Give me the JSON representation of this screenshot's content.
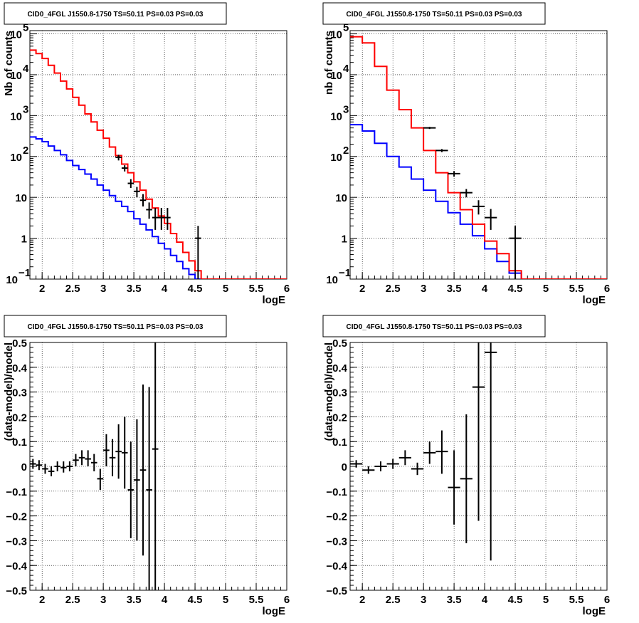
{
  "chart_data": [
    {
      "type": "step-histogram",
      "title": "CID0_4FGL J1550.8-1750 TS=50.11 PS=0.03 PS=0.03",
      "xlabel": "logE",
      "ylabel": "Nb of counts",
      "log_y": true,
      "xlim": [
        1.8,
        6.0
      ],
      "ylim": [
        0.1,
        120000
      ],
      "x_ticks": [
        "2",
        "2.5",
        "3",
        "3.5",
        "4",
        "4.5",
        "5",
        "5.5",
        "6"
      ],
      "y_ticks": [
        {
          "v": 0.1,
          "base": "10",
          "exp": "−1"
        },
        {
          "v": 1,
          "label": "1"
        },
        {
          "v": 10,
          "label": "10"
        },
        {
          "v": 100,
          "base": "10",
          "exp": "2"
        },
        {
          "v": 1000,
          "base": "10",
          "exp": "3"
        },
        {
          "v": 10000,
          "base": "10",
          "exp": "4"
        },
        {
          "v": 100000,
          "base": "10",
          "exp": "5"
        }
      ],
      "grid": true,
      "edges": [
        1.8,
        1.9,
        2.0,
        2.1,
        2.2,
        2.3,
        2.4,
        2.5,
        2.6,
        2.7,
        2.8,
        2.9,
        3.0,
        3.1,
        3.2,
        3.3,
        3.4,
        3.5,
        3.6,
        3.7,
        3.8,
        3.9,
        4.0,
        4.1,
        4.2,
        4.3,
        4.4,
        4.5,
        4.6,
        4.7,
        4.8,
        4.9,
        5.0,
        5.1,
        5.2,
        5.3,
        5.4,
        5.5,
        5.6,
        5.7,
        5.8,
        5.9,
        6.0
      ],
      "series": [
        {
          "color": "#0000ff",
          "values": [
            300,
            270,
            230,
            180,
            140,
            110,
            80,
            60,
            48,
            37,
            28,
            20,
            15,
            11,
            8,
            6,
            4.5,
            3,
            2.2,
            1.6,
            1.1,
            0.75,
            0.55,
            0.38,
            0.27,
            0.18,
            0.13,
            0.1,
            0.1,
            0.1,
            0.1,
            0.1,
            0.1,
            0.1,
            0.1,
            0.1,
            0.1,
            0.1,
            0.1,
            0.1,
            0.1,
            0.1
          ]
        },
        {
          "color": "#ff0000",
          "values": [
            40000,
            33000,
            25000,
            17000,
            11000,
            7000,
            4500,
            2800,
            1800,
            1100,
            700,
            440,
            280,
            170,
            105,
            65,
            40,
            24,
            15,
            9,
            5.5,
            3.5,
            2.3,
            1.3,
            0.8,
            0.45,
            0.28,
            0.16,
            0.1,
            0.1,
            0.1,
            0.1,
            0.1,
            0.1,
            0.1,
            0.1,
            0.1,
            0.1,
            0.1,
            0.1,
            0.1,
            0.1
          ]
        }
      ],
      "points": [
        {
          "x": 3.25,
          "y": 95,
          "lo": 80,
          "hi": 110,
          "xerr": 0.05
        },
        {
          "x": 3.35,
          "y": 52,
          "lo": 43,
          "hi": 61,
          "xerr": 0.05
        },
        {
          "x": 3.45,
          "y": 22,
          "lo": 17,
          "hi": 28,
          "xerr": 0.05
        },
        {
          "x": 3.55,
          "y": 14,
          "lo": 10,
          "hi": 18,
          "xerr": 0.05
        },
        {
          "x": 3.65,
          "y": 8.5,
          "lo": 6,
          "hi": 12,
          "xerr": 0.05
        },
        {
          "x": 3.75,
          "y": 5,
          "lo": 3,
          "hi": 7.5,
          "xerr": 0.05
        },
        {
          "x": 3.85,
          "y": 3.2,
          "lo": 1.6,
          "hi": 5.5,
          "xerr": 0.05
        },
        {
          "x": 3.95,
          "y": 3.2,
          "lo": 1.6,
          "hi": 5.5,
          "xerr": 0.05
        },
        {
          "x": 4.05,
          "y": 3.2,
          "lo": 1.6,
          "hi": 5.5,
          "xerr": 0.05
        },
        {
          "x": 4.55,
          "y": 1.0,
          "lo": 0.1,
          "hi": 2.0,
          "xerr": 0.05
        }
      ]
    },
    {
      "type": "step-histogram",
      "title": "CID0_4FGL J1550.8-1750 TS=50.11 PS=0.03 PS=0.03",
      "xlabel": "logE",
      "ylabel": "nb of counts",
      "log_y": true,
      "xlim": [
        1.8,
        6.0
      ],
      "ylim": [
        0.1,
        120000
      ],
      "x_ticks": [
        "2",
        "2.5",
        "3",
        "3.5",
        "4",
        "4.5",
        "5",
        "5.5",
        "6"
      ],
      "y_ticks": [
        {
          "v": 0.1,
          "base": "10",
          "exp": "−1"
        },
        {
          "v": 1,
          "label": "1"
        },
        {
          "v": 10,
          "label": "10"
        },
        {
          "v": 100,
          "base": "10",
          "exp": "2"
        },
        {
          "v": 1000,
          "base": "10",
          "exp": "3"
        },
        {
          "v": 10000,
          "base": "10",
          "exp": "4"
        },
        {
          "v": 100000,
          "base": "10",
          "exp": "5"
        }
      ],
      "grid": true,
      "edges": [
        1.8,
        2.0,
        2.2,
        2.4,
        2.6,
        2.8,
        3.0,
        3.2,
        3.4,
        3.6,
        3.8,
        4.0,
        4.2,
        4.4,
        4.6,
        4.8,
        5.0,
        5.2,
        5.4,
        5.6,
        5.8,
        6.0
      ],
      "series": [
        {
          "color": "#0000ff",
          "values": [
            600,
            420,
            210,
            100,
            55,
            28,
            15,
            8,
            4.2,
            2.2,
            1.15,
            0.55,
            0.27,
            0.14,
            0.1,
            0.1,
            0.1,
            0.1,
            0.1,
            0.1,
            0.1
          ]
        },
        {
          "color": "#ff0000",
          "values": [
            85000,
            60000,
            16000,
            4200,
            1400,
            500,
            140,
            40,
            13,
            5,
            2.2,
            0.85,
            0.42,
            0.16,
            0.1,
            0.1,
            0.1,
            0.1,
            0.1,
            0.1,
            0.1
          ]
        }
      ],
      "points": [
        {
          "x": 3.1,
          "y": 500,
          "lo": 470,
          "hi": 530,
          "xerr": 0.1
        },
        {
          "x": 3.3,
          "y": 140,
          "lo": 128,
          "hi": 152,
          "xerr": 0.1
        },
        {
          "x": 3.5,
          "y": 38,
          "lo": 32,
          "hi": 44,
          "xerr": 0.1
        },
        {
          "x": 3.7,
          "y": 13,
          "lo": 10,
          "hi": 16,
          "xerr": 0.1
        },
        {
          "x": 3.9,
          "y": 6,
          "lo": 3.8,
          "hi": 8.5,
          "xerr": 0.1
        },
        {
          "x": 4.1,
          "y": 3.2,
          "lo": 1.6,
          "hi": 5.2,
          "xerr": 0.1
        },
        {
          "x": 4.5,
          "y": 1.0,
          "lo": 0.1,
          "hi": 2.0,
          "xerr": 0.1
        }
      ]
    },
    {
      "type": "scatter-errorbar",
      "title": "CID0_4FGL J1550.8-1750 TS=50.11 PS=0.03 PS=0.03",
      "xlabel": "logE",
      "ylabel": "(data-model)/model",
      "log_y": false,
      "xlim": [
        1.8,
        6.0
      ],
      "ylim": [
        -0.5,
        0.5
      ],
      "x_ticks": [
        "2",
        "2.5",
        "3",
        "3.5",
        "4",
        "4.5",
        "5",
        "5.5",
        "6"
      ],
      "y_ticks": [
        {
          "v": -0.5,
          "label": "−0.5"
        },
        {
          "v": -0.4,
          "label": "−0.4"
        },
        {
          "v": -0.3,
          "label": "−0.3"
        },
        {
          "v": -0.2,
          "label": "−0.2"
        },
        {
          "v": -0.1,
          "label": "−0.1"
        },
        {
          "v": 0,
          "label": "0"
        },
        {
          "v": 0.1,
          "label": "0.1"
        },
        {
          "v": 0.2,
          "label": "0.2"
        },
        {
          "v": 0.3,
          "label": "0.3"
        },
        {
          "v": 0.4,
          "label": "0.4"
        },
        {
          "v": 0.5,
          "label": "0.5"
        }
      ],
      "grid": true,
      "points": [
        {
          "x": 1.85,
          "y": 0.01,
          "lo": -0.01,
          "hi": 0.03,
          "xerr": 0.05
        },
        {
          "x": 1.95,
          "y": 0.005,
          "lo": -0.015,
          "hi": 0.025,
          "xerr": 0.05
        },
        {
          "x": 2.05,
          "y": -0.01,
          "lo": -0.03,
          "hi": 0.01,
          "xerr": 0.05
        },
        {
          "x": 2.15,
          "y": -0.02,
          "lo": -0.04,
          "hi": 0.0,
          "xerr": 0.05
        },
        {
          "x": 2.25,
          "y": 0.0,
          "lo": -0.02,
          "hi": 0.02,
          "xerr": 0.05
        },
        {
          "x": 2.35,
          "y": -0.005,
          "lo": -0.025,
          "hi": 0.02,
          "xerr": 0.05
        },
        {
          "x": 2.45,
          "y": 0.0,
          "lo": -0.02,
          "hi": 0.02,
          "xerr": 0.05
        },
        {
          "x": 2.55,
          "y": 0.025,
          "lo": 0.0,
          "hi": 0.05,
          "xerr": 0.05
        },
        {
          "x": 2.65,
          "y": 0.035,
          "lo": 0.005,
          "hi": 0.065,
          "xerr": 0.05
        },
        {
          "x": 2.75,
          "y": 0.03,
          "lo": 0.0,
          "hi": 0.065,
          "xerr": 0.05
        },
        {
          "x": 2.85,
          "y": 0.015,
          "lo": -0.02,
          "hi": 0.05,
          "xerr": 0.05
        },
        {
          "x": 2.95,
          "y": -0.05,
          "lo": -0.095,
          "hi": -0.01,
          "xerr": 0.05
        },
        {
          "x": 3.05,
          "y": 0.065,
          "lo": 0.0,
          "hi": 0.13,
          "xerr": 0.05
        },
        {
          "x": 3.15,
          "y": 0.035,
          "lo": -0.04,
          "hi": 0.11,
          "xerr": 0.05
        },
        {
          "x": 3.25,
          "y": 0.06,
          "lo": -0.05,
          "hi": 0.17,
          "xerr": 0.05
        },
        {
          "x": 3.35,
          "y": 0.055,
          "lo": -0.09,
          "hi": 0.2,
          "xerr": 0.05
        },
        {
          "x": 3.45,
          "y": -0.095,
          "lo": -0.29,
          "hi": 0.1,
          "xerr": 0.05
        },
        {
          "x": 3.55,
          "y": -0.055,
          "lo": -0.3,
          "hi": 0.19,
          "xerr": 0.05
        },
        {
          "x": 3.65,
          "y": -0.015,
          "lo": -0.36,
          "hi": 0.33,
          "xerr": 0.05
        },
        {
          "x": 3.75,
          "y": -0.095,
          "lo": -0.5,
          "hi": 0.32,
          "xerr": 0.05
        },
        {
          "x": 3.85,
          "y": 0.07,
          "lo": -0.5,
          "hi": 0.5,
          "xerr": 0.05
        }
      ]
    },
    {
      "type": "scatter-errorbar",
      "title": "CID0_4FGL J1550.8-1750 TS=50.11 PS=0.03 PS=0.03",
      "xlabel": "logE",
      "ylabel": "(data-model)/model",
      "log_y": false,
      "xlim": [
        1.8,
        6.0
      ],
      "ylim": [
        -0.5,
        0.5
      ],
      "x_ticks": [
        "2",
        "2.5",
        "3",
        "3.5",
        "4",
        "4.5",
        "5",
        "5.5",
        "6"
      ],
      "y_ticks": [
        {
          "v": -0.5,
          "label": "−0.5"
        },
        {
          "v": -0.4,
          "label": "−0.4"
        },
        {
          "v": -0.3,
          "label": "−0.3"
        },
        {
          "v": -0.2,
          "label": "−0.2"
        },
        {
          "v": -0.1,
          "label": "−0.1"
        },
        {
          "v": 0,
          "label": "0"
        },
        {
          "v": 0.1,
          "label": "0.1"
        },
        {
          "v": 0.2,
          "label": "0.2"
        },
        {
          "v": 0.3,
          "label": "0.3"
        },
        {
          "v": 0.4,
          "label": "0.4"
        },
        {
          "v": 0.5,
          "label": "0.5"
        }
      ],
      "grid": true,
      "points": [
        {
          "x": 1.9,
          "y": 0.01,
          "lo": -0.005,
          "hi": 0.025,
          "xerr": 0.1
        },
        {
          "x": 2.1,
          "y": -0.015,
          "lo": -0.03,
          "hi": 0.0,
          "xerr": 0.1
        },
        {
          "x": 2.3,
          "y": 0.0,
          "lo": -0.02,
          "hi": 0.02,
          "xerr": 0.1
        },
        {
          "x": 2.5,
          "y": 0.01,
          "lo": -0.01,
          "hi": 0.03,
          "xerr": 0.1
        },
        {
          "x": 2.7,
          "y": 0.035,
          "lo": 0.005,
          "hi": 0.065,
          "xerr": 0.1
        },
        {
          "x": 2.9,
          "y": -0.01,
          "lo": -0.035,
          "hi": 0.015,
          "xerr": 0.1
        },
        {
          "x": 3.1,
          "y": 0.055,
          "lo": 0.01,
          "hi": 0.1,
          "xerr": 0.1
        },
        {
          "x": 3.3,
          "y": 0.06,
          "lo": -0.03,
          "hi": 0.145,
          "xerr": 0.1
        },
        {
          "x": 3.5,
          "y": -0.085,
          "lo": -0.235,
          "hi": 0.065,
          "xerr": 0.1
        },
        {
          "x": 3.7,
          "y": -0.05,
          "lo": -0.31,
          "hi": 0.21,
          "xerr": 0.1
        },
        {
          "x": 3.9,
          "y": 0.32,
          "lo": -0.22,
          "hi": 0.5,
          "xerr": 0.1
        },
        {
          "x": 4.1,
          "y": 0.46,
          "lo": -0.38,
          "hi": 0.5,
          "xerr": 0.1
        }
      ]
    }
  ]
}
